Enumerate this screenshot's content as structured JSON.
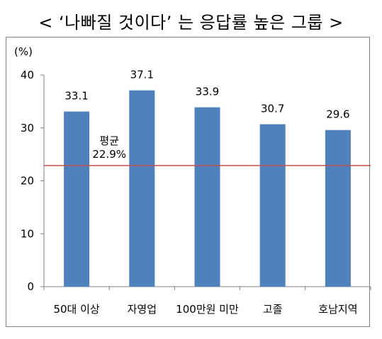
{
  "title": "< ‘나빠질 것이다’ 는 응답률 높은 그룹 >",
  "chart_data": {
    "type": "bar",
    "ylabel": "(%)",
    "ylim": [
      0,
      40
    ],
    "yticks": [
      "0",
      "10",
      "20",
      "30",
      "40"
    ],
    "categories": [
      "50대 이상",
      "자영업",
      "100만원 미만",
      "고졸",
      "호남지역"
    ],
    "values": [
      33.1,
      37.1,
      33.9,
      30.7,
      29.6
    ],
    "value_labels": [
      "33.1",
      "37.1",
      "33.9",
      "30.7",
      "29.6"
    ],
    "reference_line": {
      "value": 22.9,
      "label_line1": "평균",
      "label_line2": "22.9%",
      "color": "#c0504d"
    },
    "bar_color": "#4f81bd",
    "grid": false,
    "legend": "none"
  }
}
